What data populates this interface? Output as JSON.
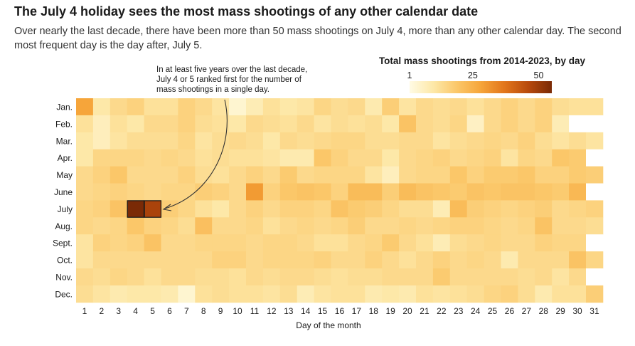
{
  "title": "The July 4 holiday sees the most mass shootings of any other calendar date",
  "subtitle": "Over nearly the last decade, there have been more than 50 mass shootings on July 4, more than any other calendar day. The second most frequent day is the day after, July 5.",
  "legend": {
    "title": "Total mass shootings from 2014-2023, by day",
    "ticks": [
      "1",
      "25",
      "50"
    ],
    "min": 1,
    "max": 55
  },
  "annotation": {
    "lines": [
      "In at least five years over the last decade,",
      "July 4 or 5 ranked first for the number of",
      "mass shootings in a single day."
    ]
  },
  "colors": {
    "scale": [
      "#fffbe4",
      "#fde8a8",
      "#fbc769",
      "#f6a53a",
      "#e2761c",
      "#b84a0c",
      "#7a2a06"
    ],
    "empty": "#ffffff",
    "highlight_stroke": "#1a1a1a"
  },
  "chart_data": {
    "type": "heatmap",
    "xlabel": "Day of the month",
    "ylabel": "",
    "rows": [
      "Jan.",
      "Feb.",
      "Mar.",
      "Apr.",
      "May",
      "June",
      "July",
      "Aug.",
      "Sept.",
      "Oct.",
      "Nov.",
      "Dec."
    ],
    "columns": [
      "1",
      "2",
      "3",
      "4",
      "5",
      "6",
      "7",
      "8",
      "9",
      "10",
      "11",
      "12",
      "13",
      "14",
      "15",
      "16",
      "17",
      "18",
      "19",
      "20",
      "21",
      "22",
      "23",
      "24",
      "25",
      "26",
      "27",
      "28",
      "29",
      "30",
      "31"
    ],
    "values": [
      [
        28,
        10,
        14,
        16,
        12,
        12,
        16,
        14,
        11,
        4,
        8,
        12,
        10,
        11,
        15,
        13,
        14,
        9,
        17,
        11,
        14,
        13,
        14,
        12,
        14,
        16,
        14,
        16,
        13,
        12,
        12
      ],
      [
        12,
        7,
        12,
        10,
        14,
        14,
        16,
        13,
        12,
        10,
        14,
        13,
        12,
        14,
        11,
        13,
        12,
        13,
        10,
        20,
        14,
        13,
        15,
        6,
        14,
        16,
        14,
        16,
        8,
        null,
        null
      ],
      [
        10,
        7,
        11,
        13,
        13,
        13,
        15,
        11,
        13,
        14,
        13,
        10,
        14,
        13,
        14,
        15,
        15,
        13,
        13,
        14,
        14,
        11,
        13,
        14,
        15,
        14,
        16,
        13,
        11,
        13,
        11
      ],
      [
        10,
        15,
        15,
        15,
        14,
        15,
        14,
        12,
        13,
        12,
        12,
        11,
        9,
        9,
        19,
        16,
        14,
        14,
        10,
        14,
        15,
        16,
        14,
        15,
        16,
        11,
        15,
        14,
        19,
        18,
        null
      ],
      [
        14,
        16,
        19,
        14,
        14,
        14,
        16,
        13,
        12,
        14,
        16,
        14,
        18,
        14,
        15,
        15,
        15,
        11,
        7,
        14,
        15,
        15,
        19,
        16,
        18,
        18,
        19,
        16,
        16,
        18,
        17
      ],
      [
        14,
        15,
        16,
        15,
        14,
        15,
        15,
        17,
        16,
        14,
        30,
        16,
        19,
        20,
        19,
        16,
        22,
        22,
        17,
        22,
        20,
        19,
        18,
        20,
        19,
        20,
        20,
        19,
        18,
        23,
        null
      ],
      [
        15,
        16,
        20,
        55,
        48,
        17,
        15,
        12,
        10,
        14,
        16,
        14,
        16,
        16,
        15,
        20,
        18,
        17,
        15,
        13,
        13,
        8,
        22,
        17,
        16,
        15,
        16,
        17,
        14,
        15,
        16
      ],
      [
        15,
        14,
        15,
        19,
        16,
        15,
        13,
        21,
        14,
        14,
        15,
        12,
        14,
        15,
        14,
        15,
        17,
        14,
        14,
        15,
        14,
        15,
        16,
        16,
        15,
        14,
        15,
        20,
        14,
        14,
        13
      ],
      [
        11,
        16,
        15,
        16,
        20,
        14,
        14,
        15,
        15,
        15,
        14,
        15,
        15,
        14,
        12,
        12,
        14,
        15,
        18,
        14,
        12,
        8,
        13,
        14,
        15,
        14,
        14,
        16,
        15,
        15,
        null
      ],
      [
        11,
        14,
        14,
        14,
        14,
        14,
        14,
        14,
        16,
        16,
        14,
        15,
        15,
        15,
        16,
        14,
        14,
        16,
        14,
        12,
        14,
        16,
        14,
        15,
        14,
        9,
        14,
        14,
        14,
        20,
        15
      ],
      [
        14,
        13,
        15,
        14,
        12,
        14,
        14,
        13,
        13,
        12,
        14,
        13,
        14,
        14,
        13,
        12,
        13,
        13,
        14,
        14,
        14,
        18,
        14,
        14,
        14,
        14,
        13,
        14,
        11,
        14,
        null
      ],
      [
        13,
        11,
        9,
        10,
        10,
        9,
        4,
        12,
        13,
        12,
        12,
        11,
        13,
        8,
        11,
        12,
        12,
        9,
        10,
        9,
        12,
        11,
        12,
        13,
        15,
        16,
        13,
        9,
        12,
        12,
        17
      ]
    ],
    "highlight": [
      {
        "row": "July",
        "columns": [
          "4",
          "5"
        ]
      }
    ]
  }
}
